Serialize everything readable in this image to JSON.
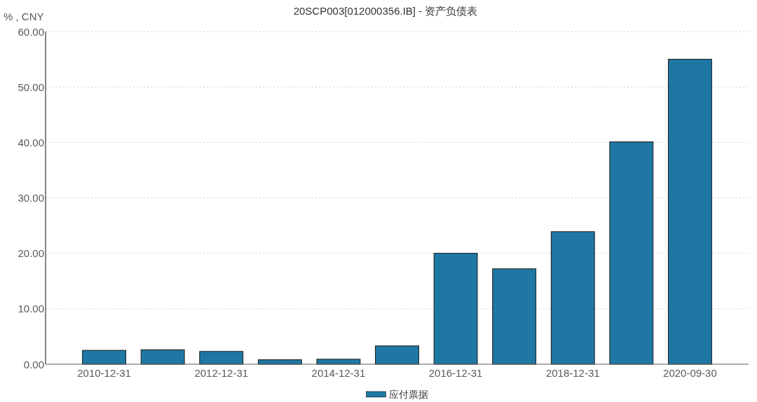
{
  "chart_data": {
    "type": "bar",
    "title": "20SCP003[012000356.IB] - 资产负债表",
    "ylabel": "% , CNY",
    "categories": [
      "2010-12-31",
      null,
      "2012-12-31",
      null,
      "2014-12-31",
      null,
      "2016-12-31",
      null,
      "2018-12-31",
      null,
      "2020-09-30"
    ],
    "series": [
      {
        "name": "应付票据",
        "color": "#1f77a4",
        "values": [
          2.5,
          2.6,
          2.3,
          0.8,
          0.9,
          3.3,
          20.0,
          17.2,
          23.9,
          40.1,
          55.0
        ]
      }
    ],
    "ylim": [
      0,
      60
    ],
    "yticks": [
      {
        "value": 0,
        "label": "0.00"
      },
      {
        "value": 10,
        "label": "10.00"
      },
      {
        "value": 20,
        "label": "20.00"
      },
      {
        "value": 30,
        "label": "30.00"
      },
      {
        "value": 40,
        "label": "40.00"
      },
      {
        "value": 50,
        "label": "50.00"
      },
      {
        "value": 60,
        "label": "60.00"
      }
    ],
    "grid": "y",
    "legend": "bottom"
  }
}
